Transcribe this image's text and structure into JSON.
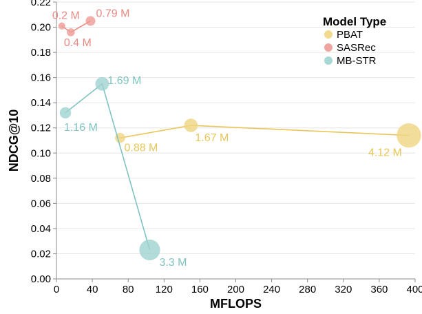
{
  "chart_data": {
    "type": "scatter",
    "xlabel": "MFLOPS",
    "ylabel": "NDCG@10",
    "xlim": [
      0,
      400
    ],
    "ylim": [
      0,
      0.22
    ],
    "x_ticks": [
      "0",
      "40",
      "80",
      "120",
      "160",
      "200",
      "240",
      "280",
      "320",
      "360",
      "400"
    ],
    "y_ticks": [
      "0.00",
      "0.02",
      "0.04",
      "0.06",
      "0.08",
      "0.10",
      "0.12",
      "0.14",
      "0.16",
      "0.18",
      "0.20",
      "0.22"
    ],
    "grid": "horizontal",
    "legend": {
      "title": "Model Type",
      "position": "top-right"
    },
    "series": [
      {
        "name": "PBAT",
        "color": "#f0d582",
        "label_color": "#e8c65a",
        "points": [
          {
            "x": 71,
            "y": 0.112,
            "label": "0.88 M",
            "params_m": 0.88
          },
          {
            "x": 150,
            "y": 0.122,
            "label": "1.67 M",
            "params_m": 1.67
          },
          {
            "x": 393,
            "y": 0.114,
            "label": "4.12 M",
            "params_m": 4.12
          }
        ]
      },
      {
        "name": "SASRec",
        "color": "#ee9a95",
        "label_color": "#e88a84",
        "points": [
          {
            "x": 6,
            "y": 0.201,
            "label": "0.2 M",
            "params_m": 0.2
          },
          {
            "x": 16,
            "y": 0.196,
            "label": "0.4 M",
            "params_m": 0.4
          },
          {
            "x": 38,
            "y": 0.205,
            "label": "0.79 M",
            "params_m": 0.79
          }
        ]
      },
      {
        "name": "MB-STR",
        "color": "#9fd3d0",
        "label_color": "#7fc4c1",
        "points": [
          {
            "x": 10,
            "y": 0.132,
            "label": "1.16 M",
            "params_m": 1.16
          },
          {
            "x": 51,
            "y": 0.155,
            "label": "1.69 M",
            "params_m": 1.69
          },
          {
            "x": 104,
            "y": 0.023,
            "label": "3.3 M",
            "params_m": 3.3
          }
        ]
      }
    ]
  }
}
